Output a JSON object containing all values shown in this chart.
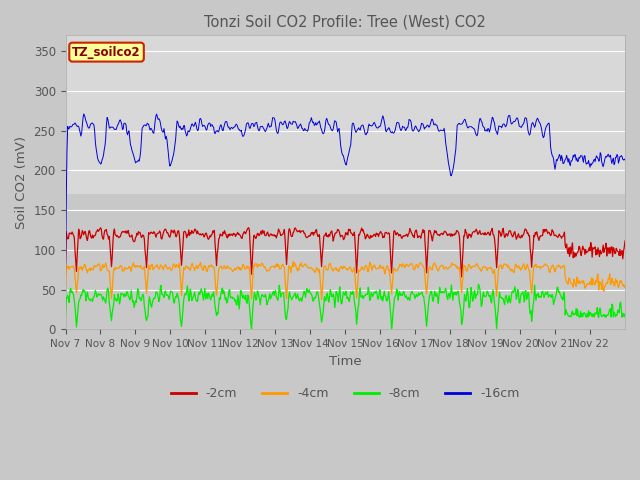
{
  "title": "Tonzi Soil CO2 Profile: Tree (West) CO2",
  "ylabel": "Soil CO2 (mV)",
  "xlabel": "Time",
  "legend_label": "TZ_soilco2",
  "ylim": [
    0,
    370
  ],
  "yticks": [
    0,
    50,
    100,
    150,
    200,
    250,
    300,
    350
  ],
  "xtick_labels": [
    "Nov 7",
    "Nov 8",
    "Nov 9",
    "Nov 10",
    "Nov 11",
    "Nov 12",
    "Nov 13",
    "Nov 14",
    "Nov 15",
    "Nov 16",
    "Nov 17",
    "Nov 18",
    "Nov 19",
    "Nov 20",
    "Nov 21",
    "Nov 22"
  ],
  "series_colors": {
    "-16cm": "#0000dd",
    "-2cm": "#cc0000",
    "-4cm": "#ff9900",
    "-8cm": "#00ee00"
  },
  "bg_upper": "#d8d8d8",
  "bg_lower": "#c8c8c8",
  "bg_split": 170,
  "title_color": "#555555",
  "axis_color": "#555555",
  "grid_color": "#ffffff",
  "figsize": [
    6.4,
    4.8
  ],
  "dpi": 100
}
